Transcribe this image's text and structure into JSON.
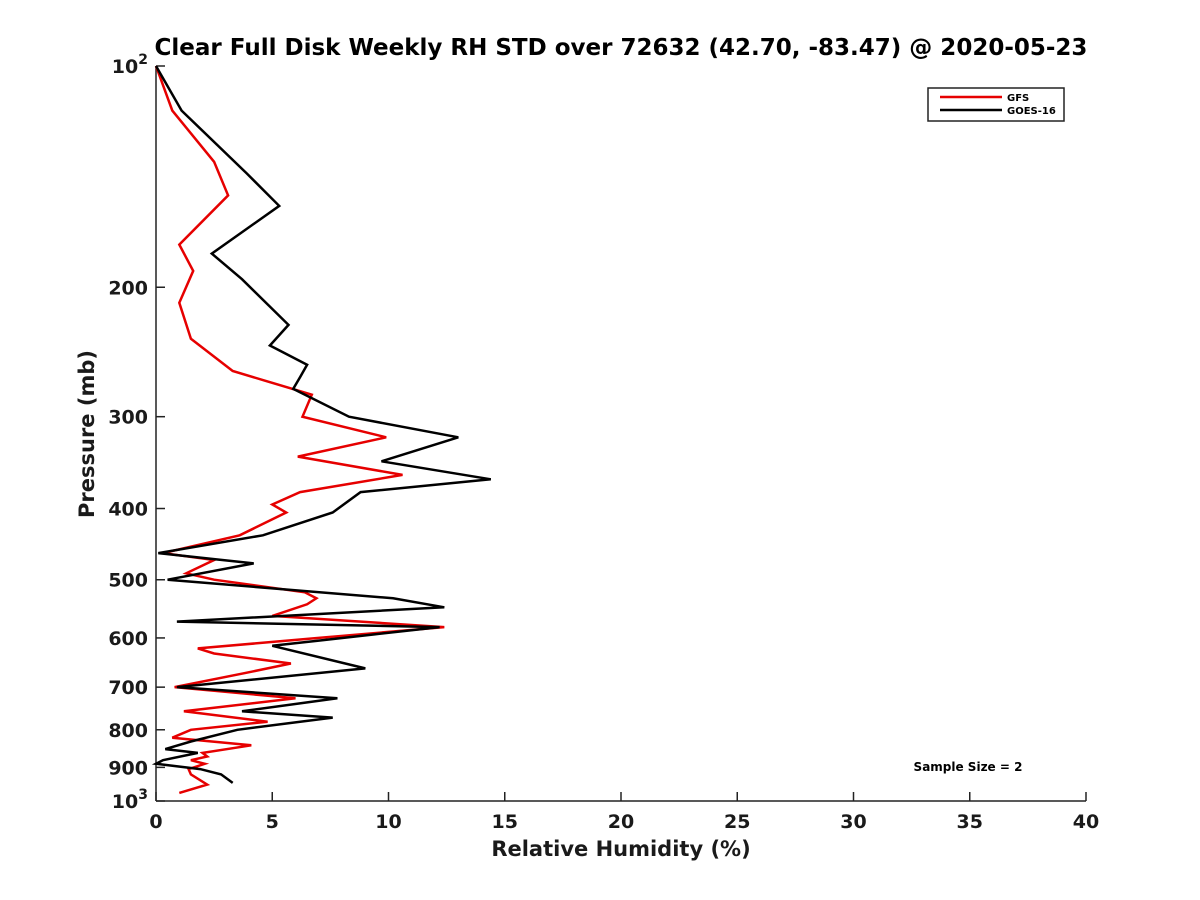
{
  "chart_data": {
    "type": "line",
    "title": "Clear Full Disk Weekly RH STD over 72632 (42.70, -83.47) @ 2020-05-23",
    "xlabel": "Relative Humidity (%)",
    "ylabel": "Pressure (mb)",
    "xlim": [
      0,
      40
    ],
    "ylim": [
      100,
      1000
    ],
    "y_scale": "log",
    "y_reversed": true,
    "x_ticks": [
      "0",
      "5",
      "10",
      "15",
      "20",
      "25",
      "30",
      "35",
      "40"
    ],
    "y_ticks": [
      {
        "value": 100,
        "base": "10",
        "exp": "2"
      },
      {
        "value": 200,
        "label": "200"
      },
      {
        "value": 300,
        "label": "300"
      },
      {
        "value": 400,
        "label": "400"
      },
      {
        "value": 500,
        "label": "500"
      },
      {
        "value": 600,
        "label": "600"
      },
      {
        "value": 700,
        "label": "700"
      },
      {
        "value": 800,
        "label": "800"
      },
      {
        "value": 900,
        "label": "900"
      },
      {
        "value": 1000,
        "base": "10",
        "exp": "3"
      }
    ],
    "grid": false,
    "legend_position": "top-right",
    "annotation": "Sample Size = 2",
    "series": [
      {
        "name": "GFS",
        "color": "#e60000",
        "points": [
          [
            0.0,
            100
          ],
          [
            0.7,
            115
          ],
          [
            2.5,
            135
          ],
          [
            3.1,
            150
          ],
          [
            1.0,
            175
          ],
          [
            1.6,
            190
          ],
          [
            1.0,
            210
          ],
          [
            1.5,
            235
          ],
          [
            3.3,
            260
          ],
          [
            6.7,
            280
          ],
          [
            6.3,
            300
          ],
          [
            9.9,
            320
          ],
          [
            6.1,
            340
          ],
          [
            10.6,
            360
          ],
          [
            6.2,
            380
          ],
          [
            5.0,
            395
          ],
          [
            5.6,
            405
          ],
          [
            3.6,
            435
          ],
          [
            0.3,
            460
          ],
          [
            2.5,
            470
          ],
          [
            1.3,
            490
          ],
          [
            2.5,
            500
          ],
          [
            6.4,
            520
          ],
          [
            6.9,
            530
          ],
          [
            6.5,
            540
          ],
          [
            5.0,
            560
          ],
          [
            12.4,
            580
          ],
          [
            7.0,
            600
          ],
          [
            1.8,
            620
          ],
          [
            2.5,
            630
          ],
          [
            5.8,
            650
          ],
          [
            3.8,
            670
          ],
          [
            0.8,
            700
          ],
          [
            6.0,
            725
          ],
          [
            1.2,
            755
          ],
          [
            4.8,
            780
          ],
          [
            1.5,
            800
          ],
          [
            0.7,
            820
          ],
          [
            4.1,
            840
          ],
          [
            2.0,
            860
          ],
          [
            2.2,
            870
          ],
          [
            1.5,
            880
          ],
          [
            2.1,
            890
          ],
          [
            1.4,
            905
          ],
          [
            1.5,
            920
          ],
          [
            2.2,
            950
          ],
          [
            1.0,
            975
          ]
        ]
      },
      {
        "name": "GOES-16",
        "color": "#000000",
        "points": [
          [
            0.0,
            100
          ],
          [
            1.1,
            115
          ],
          [
            3.9,
            140
          ],
          [
            5.3,
            155
          ],
          [
            2.4,
            180
          ],
          [
            3.7,
            195
          ],
          [
            5.7,
            225
          ],
          [
            4.9,
            240
          ],
          [
            6.5,
            255
          ],
          [
            6.2,
            265
          ],
          [
            5.9,
            275
          ],
          [
            8.3,
            300
          ],
          [
            13.0,
            320
          ],
          [
            9.7,
            345
          ],
          [
            14.4,
            365
          ],
          [
            8.8,
            380
          ],
          [
            7.6,
            405
          ],
          [
            4.6,
            435
          ],
          [
            0.1,
            460
          ],
          [
            4.2,
            475
          ],
          [
            0.5,
            500
          ],
          [
            10.2,
            530
          ],
          [
            12.4,
            545
          ],
          [
            0.9,
            570
          ],
          [
            12.2,
            580
          ],
          [
            7.0,
            605
          ],
          [
            5.0,
            615
          ],
          [
            9.0,
            660
          ],
          [
            0.9,
            700
          ],
          [
            7.8,
            725
          ],
          [
            3.7,
            755
          ],
          [
            7.6,
            770
          ],
          [
            3.5,
            800
          ],
          [
            1.5,
            830
          ],
          [
            0.4,
            850
          ],
          [
            1.8,
            860
          ],
          [
            0.3,
            880
          ],
          [
            0.0,
            890
          ],
          [
            1.9,
            905
          ],
          [
            2.8,
            920
          ],
          [
            3.3,
            945
          ]
        ]
      }
    ]
  }
}
